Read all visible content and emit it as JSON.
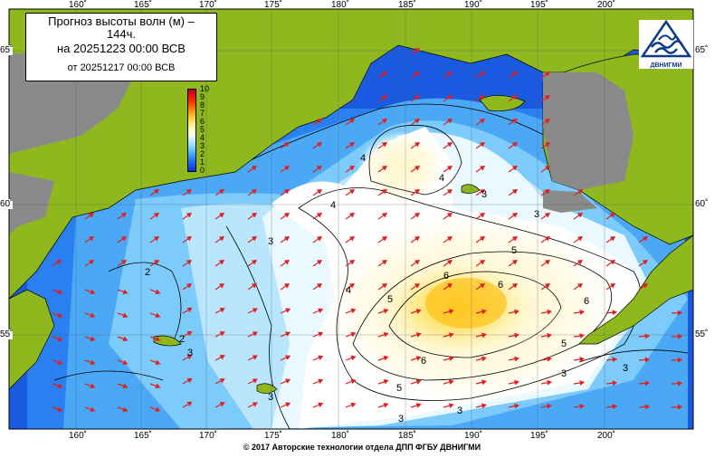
{
  "title": {
    "line1": "Прогноз высоты волн (м) –",
    "line2": "144ч.",
    "line3": "на 20251223 00:00 ВСВ",
    "line4": "от 20251217 00:00 ВСВ"
  },
  "legend": {
    "ticks": [
      "10",
      "9",
      "8",
      "7",
      "6",
      "5",
      "4",
      "3",
      "2",
      "1",
      "0"
    ],
    "colors": {
      "low": "#1030d0",
      "mid": "#ffffe8",
      "high": "#c00020"
    }
  },
  "axes": {
    "lon_labels": [
      "160˚",
      "165˚",
      "170˚",
      "175˚",
      "180˚",
      "185˚",
      "190˚",
      "195˚",
      "200˚"
    ],
    "lat_labels_left": [
      "65˚",
      "60˚",
      "55˚"
    ],
    "lat_labels_right": [
      "65˚",
      "60˚",
      "55˚"
    ]
  },
  "contour_labels": [
    "4",
    "4",
    "4",
    "3",
    "3",
    "3",
    "3",
    "3",
    "3",
    "3",
    "3",
    "2",
    "2",
    "3",
    "5",
    "5",
    "5",
    "5",
    "6",
    "6",
    "6",
    "6"
  ],
  "logo": {
    "text": "ДВНИГМИ",
    "icon": "wave-logo-icon"
  },
  "footer": "© 2017 Авторские технологии отдела ДПП ФГБУ ДВНИГМИ",
  "colors": {
    "land": "#8fb81e",
    "ice": "#8a8a8a",
    "arrow": "#e02020"
  }
}
